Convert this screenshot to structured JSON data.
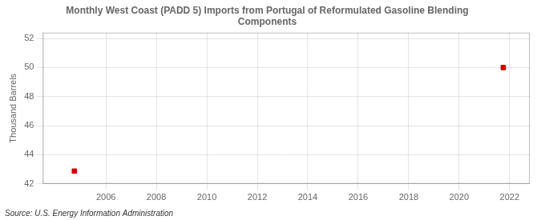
{
  "chart_data": {
    "type": "scatter",
    "title": "Monthly West Coast (PADD 5) Imports from Portugal of Reformulated Gasoline Blending\nComponents",
    "ylabel": "Thousand Barrels",
    "annotations": [
      "Source: U.S. Energy Information Administration"
    ],
    "x": [
      2004.75,
      2021.75
    ],
    "values": [
      42.876,
      50.0
    ],
    "color": "#cc0000",
    "marker": "square",
    "xlim": [
      2003.5,
      2022.8
    ],
    "ylim": [
      42,
      52.4
    ],
    "xticks": [
      2006,
      2008,
      2010,
      2012,
      2014,
      2016,
      2018,
      2020,
      2022
    ],
    "yticks": [
      42,
      44,
      46,
      48,
      50,
      52
    ],
    "grid": true
  }
}
